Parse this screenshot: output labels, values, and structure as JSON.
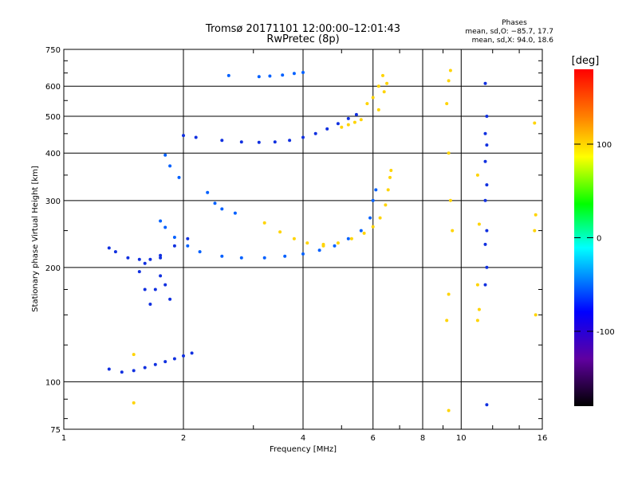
{
  "chart_data": {
    "type": "scatter",
    "title": "Tromsø 20171101 12:00:00–12:01:43",
    "subtitle": "RwPretec (8p)",
    "xlabel": "Frequency [MHz]",
    "ylabel": "Stationary phase Virtual Height [km]",
    "x_scale": "log",
    "y_scale": "log",
    "xlim": [
      1,
      16
    ],
    "ylim": [
      75,
      750
    ],
    "x_ticks": [
      1,
      2,
      4,
      6,
      8,
      10,
      16
    ],
    "y_ticks": [
      75,
      100,
      200,
      300,
      400,
      500,
      600,
      750
    ],
    "grid": true,
    "stats": {
      "heading": "Phases",
      "o_line": "mean, sd,O: −85.7, 17.7",
      "x_line": "mean, sd,X:  94.0, 18.6"
    },
    "colorbar": {
      "label": "[deg]",
      "range": [
        -180,
        180
      ],
      "ticks": [
        100,
        0,
        -100
      ],
      "colors": [
        "#ff0000",
        "#ffa000",
        "#ffff00",
        "#00ff00",
        "#00ffff",
        "#0000ff",
        "#6000a0",
        "#000000"
      ]
    },
    "traces": [
      {
        "phase": -85,
        "points": [
          [
            2.6,
            640
          ],
          [
            3.1,
            636
          ],
          [
            3.3,
            638
          ],
          [
            3.55,
            642
          ],
          [
            3.8,
            648
          ],
          [
            4.0,
            652
          ]
        ]
      },
      {
        "phase": -95,
        "points": [
          [
            2.0,
            445
          ],
          [
            2.15,
            440
          ],
          [
            2.5,
            432
          ],
          [
            2.8,
            428
          ],
          [
            3.1,
            427
          ],
          [
            3.4,
            428
          ],
          [
            3.7,
            432
          ],
          [
            4.0,
            440
          ],
          [
            4.3,
            450
          ],
          [
            4.6,
            463
          ],
          [
            4.9,
            478
          ],
          [
            5.2,
            493
          ],
          [
            5.45,
            505
          ]
        ]
      },
      {
        "phase": 100,
        "points": [
          [
            5.0,
            468
          ],
          [
            5.2,
            475
          ],
          [
            5.4,
            482
          ],
          [
            5.6,
            490
          ]
        ]
      },
      {
        "phase": 95,
        "points": [
          [
            5.8,
            540
          ],
          [
            6.0,
            560
          ],
          [
            6.2,
            600
          ],
          [
            6.35,
            640
          ]
        ]
      },
      {
        "phase": -90,
        "points": [
          [
            1.6,
            205
          ],
          [
            1.75,
            215
          ],
          [
            1.9,
            228
          ],
          [
            2.05,
            238
          ]
        ]
      },
      {
        "phase": -85,
        "points": [
          [
            1.75,
            265
          ],
          [
            1.8,
            255
          ],
          [
            1.9,
            240
          ],
          [
            2.05,
            228
          ],
          [
            2.2,
            220
          ],
          [
            2.5,
            214
          ],
          [
            2.8,
            212
          ],
          [
            3.2,
            212
          ],
          [
            3.6,
            214
          ],
          [
            4.0,
            217
          ],
          [
            4.4,
            222
          ],
          [
            4.8,
            228
          ],
          [
            5.2,
            238
          ],
          [
            5.6,
            250
          ],
          [
            5.9,
            270
          ],
          [
            6.0,
            300
          ],
          [
            6.1,
            320
          ]
        ]
      },
      {
        "phase": 100,
        "points": [
          [
            3.2,
            262
          ],
          [
            3.5,
            248
          ],
          [
            3.8,
            238
          ],
          [
            4.1,
            232
          ],
          [
            4.5,
            230
          ]
        ]
      },
      {
        "phase": 95,
        "points": [
          [
            4.5,
            228
          ],
          [
            4.9,
            232
          ],
          [
            5.3,
            238
          ],
          [
            5.7,
            246
          ],
          [
            6.0,
            256
          ],
          [
            6.25,
            270
          ],
          [
            6.45,
            292
          ],
          [
            6.55,
            320
          ],
          [
            6.62,
            345
          ],
          [
            6.66,
            360
          ]
        ]
      },
      {
        "phase": -80,
        "points": [
          [
            1.8,
            395
          ],
          [
            1.85,
            370
          ],
          [
            1.95,
            345
          ]
        ]
      },
      {
        "phase": -85,
        "points": [
          [
            2.3,
            315
          ],
          [
            2.4,
            295
          ],
          [
            2.5,
            285
          ],
          [
            2.7,
            278
          ]
        ]
      },
      {
        "phase": -95,
        "points": [
          [
            1.3,
            225
          ],
          [
            1.35,
            220
          ],
          [
            1.45,
            212
          ],
          [
            1.55,
            210
          ],
          [
            1.65,
            210
          ],
          [
            1.75,
            212
          ]
        ]
      },
      {
        "phase": -90,
        "points": [
          [
            1.55,
            195
          ],
          [
            1.6,
            175
          ],
          [
            1.65,
            160
          ],
          [
            1.7,
            175
          ],
          [
            1.75,
            190
          ],
          [
            1.8,
            180
          ],
          [
            1.85,
            165
          ]
        ]
      },
      {
        "phase": -100,
        "points": [
          [
            1.3,
            108
          ],
          [
            1.4,
            106
          ],
          [
            1.5,
            107
          ],
          [
            1.6,
            109
          ],
          [
            1.7,
            111
          ],
          [
            1.8,
            113
          ],
          [
            1.9,
            115
          ],
          [
            2.0,
            117
          ],
          [
            2.1,
            119
          ]
        ]
      },
      {
        "phase": 95,
        "points": [
          [
            6.2,
            520
          ],
          [
            6.4,
            580
          ],
          [
            6.5,
            610
          ]
        ]
      },
      {
        "phase": 95,
        "points": [
          [
            9.2,
            540
          ],
          [
            9.3,
            620
          ],
          [
            9.4,
            660
          ],
          [
            9.3,
            400
          ],
          [
            9.4,
            300
          ],
          [
            9.5,
            250
          ],
          [
            9.3,
            170
          ],
          [
            9.2,
            145
          ],
          [
            9.3,
            84
          ]
        ]
      },
      {
        "phase": 90,
        "points": [
          [
            11.0,
            350
          ],
          [
            11.1,
            260
          ],
          [
            11.0,
            180
          ],
          [
            11.1,
            155
          ],
          [
            11.0,
            145
          ]
        ]
      },
      {
        "phase": -95,
        "points": [
          [
            11.5,
            610
          ],
          [
            11.6,
            500
          ],
          [
            11.5,
            450
          ],
          [
            11.6,
            420
          ],
          [
            11.5,
            380
          ],
          [
            11.6,
            330
          ],
          [
            11.5,
            300
          ],
          [
            11.6,
            250
          ],
          [
            11.5,
            230
          ],
          [
            11.6,
            200
          ],
          [
            11.5,
            180
          ],
          [
            11.6,
            87
          ]
        ]
      },
      {
        "phase": 100,
        "points": [
          [
            15.3,
            480
          ],
          [
            15.4,
            275
          ],
          [
            15.3,
            250
          ],
          [
            15.4,
            150
          ]
        ]
      },
      {
        "phase": 100,
        "points": [
          [
            1.5,
            118
          ],
          [
            1.5,
            88
          ]
        ]
      }
    ]
  }
}
